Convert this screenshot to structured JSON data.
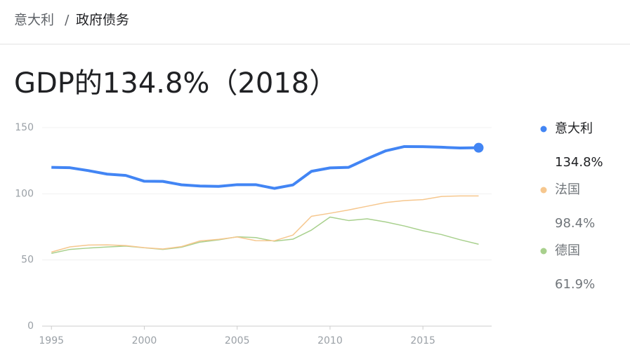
{
  "breadcrumb": {
    "items": [
      "意大利",
      "政府债务"
    ],
    "separator": "/"
  },
  "chart_data": {
    "type": "line",
    "title": "GDP的134.8%（2018）",
    "x": [
      1995,
      1996,
      1997,
      1998,
      1999,
      2000,
      2001,
      2002,
      2003,
      2004,
      2005,
      2006,
      2007,
      2008,
      2009,
      2010,
      2011,
      2012,
      2013,
      2014,
      2015,
      2016,
      2017,
      2018
    ],
    "xlim": [
      1994.5,
      2018.7
    ],
    "xticks": [
      1995,
      2000,
      2005,
      2010,
      2015
    ],
    "ylim": [
      0,
      150
    ],
    "yticks": [
      0,
      50,
      100,
      150
    ],
    "grid": true,
    "legend": "right",
    "series": [
      {
        "name": "意大利",
        "color": "#4285f4",
        "values": [
          120,
          119.7,
          117.5,
          114.9,
          113.9,
          109.5,
          109.4,
          106.8,
          105.9,
          105.6,
          106.9,
          106.9,
          104.1,
          106.7,
          117,
          119.6,
          120,
          126.5,
          132.5,
          135.7,
          135.6,
          135.2,
          134.6,
          134.8
        ],
        "value_labels": [
          null,
          null,
          null,
          null,
          null,
          null,
          null,
          null,
          null,
          null,
          null,
          null,
          null,
          null,
          null,
          null,
          null,
          null,
          null,
          null,
          null,
          null,
          null,
          "134.8%"
        ]
      },
      {
        "name": "法国",
        "color": "#f6c78e",
        "values": [
          56,
          59.9,
          61.3,
          61.4,
          60.9,
          59.3,
          58.3,
          60.1,
          64.4,
          65.6,
          67.4,
          64.6,
          64.5,
          68.8,
          83,
          85.3,
          87.8,
          90.6,
          93.4,
          94.9,
          95.6,
          98,
          98.4,
          98.4
        ],
        "value_labels": [
          null,
          null,
          null,
          null,
          null,
          null,
          null,
          null,
          null,
          null,
          null,
          null,
          null,
          null,
          null,
          null,
          null,
          null,
          null,
          null,
          null,
          null,
          null,
          "98.4%"
        ]
      },
      {
        "name": "德国",
        "color": "#a8d08d",
        "values": [
          55,
          58,
          59,
          59.8,
          60.5,
          59.2,
          58,
          59.6,
          63.5,
          65.2,
          67.5,
          66.9,
          64.2,
          65.7,
          72.6,
          82.4,
          79.8,
          81.1,
          78.7,
          75.7,
          72.1,
          69.2,
          65.3,
          61.9
        ],
        "value_labels": [
          null,
          null,
          null,
          null,
          null,
          null,
          null,
          null,
          null,
          null,
          null,
          null,
          null,
          null,
          null,
          null,
          null,
          null,
          null,
          null,
          null,
          null,
          null,
          "61.9%"
        ]
      }
    ]
  }
}
